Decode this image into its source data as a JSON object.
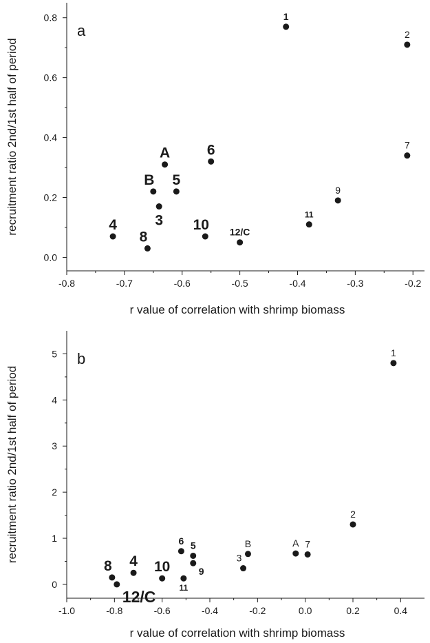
{
  "chart_data": [
    {
      "type": "scatter",
      "panel_label": "a",
      "xlabel": "r value of correlation with shrimp biomass",
      "ylabel": "recruitment ratio 2nd/1st half of period",
      "xlim": [
        -0.8,
        -0.18
      ],
      "ylim": [
        -0.045,
        0.85
      ],
      "xticks": [
        -0.8,
        -0.7,
        -0.6,
        -0.5,
        -0.4,
        -0.3,
        -0.2
      ],
      "xtick_labels": [
        "-0.8",
        "-0.7",
        "-0.6",
        "-0.5",
        "-0.4",
        "-0.3",
        "-0.2"
      ],
      "yticks": [
        0.0,
        0.2,
        0.4,
        0.6,
        0.8
      ],
      "ytick_labels": [
        "0.0",
        "0.2",
        "0.4",
        "0.6",
        "0.8"
      ],
      "grid": false,
      "points": [
        {
          "label": "1",
          "x": -0.42,
          "y": 0.77,
          "label_style": "bold-small",
          "label_pos": "above"
        },
        {
          "label": "2",
          "x": -0.21,
          "y": 0.71,
          "label_style": "normal-small",
          "label_pos": "above"
        },
        {
          "label": "7",
          "x": -0.21,
          "y": 0.34,
          "label_style": "normal-small",
          "label_pos": "above"
        },
        {
          "label": "9",
          "x": -0.33,
          "y": 0.19,
          "label_style": "normal-small",
          "label_pos": "above"
        },
        {
          "label": "11",
          "x": -0.38,
          "y": 0.11,
          "label_style": "bold-tiny",
          "label_pos": "above"
        },
        {
          "label": "12/C",
          "x": -0.5,
          "y": 0.05,
          "label_style": "bold-small",
          "label_pos": "above"
        },
        {
          "label": "10",
          "x": -0.56,
          "y": 0.07,
          "label_style": "bold-large",
          "label_pos": "above-left"
        },
        {
          "label": "6",
          "x": -0.55,
          "y": 0.32,
          "label_style": "bold-large",
          "label_pos": "above"
        },
        {
          "label": "5",
          "x": -0.61,
          "y": 0.22,
          "label_style": "bold-large",
          "label_pos": "above"
        },
        {
          "label": "A",
          "x": -0.63,
          "y": 0.31,
          "label_style": "bold-large",
          "label_pos": "above"
        },
        {
          "label": "B",
          "x": -0.65,
          "y": 0.22,
          "label_style": "bold-large",
          "label_pos": "above-left"
        },
        {
          "label": "3",
          "x": -0.64,
          "y": 0.17,
          "label_style": "bold-large",
          "label_pos": "below"
        },
        {
          "label": "8",
          "x": -0.66,
          "y": 0.03,
          "label_style": "bold-large",
          "label_pos": "above-left"
        },
        {
          "label": "4",
          "x": -0.72,
          "y": 0.07,
          "label_style": "bold-large",
          "label_pos": "above"
        }
      ]
    },
    {
      "type": "scatter",
      "panel_label": "b",
      "xlabel": "r value of correlation with shrimp biomass",
      "ylabel": "recruitment ratio 2nd/1st half of period",
      "xlim": [
        -1.0,
        0.5
      ],
      "ylim": [
        -0.3,
        5.5
      ],
      "xticks": [
        -1.0,
        -0.8,
        -0.6,
        -0.4,
        -0.2,
        0.0,
        0.2,
        0.4
      ],
      "xtick_labels": [
        "-1.0",
        "-0.8",
        "-0.6",
        "-0.4",
        "-0.2",
        "0.0",
        "0.2",
        "0.4"
      ],
      "yticks": [
        0,
        1,
        2,
        3,
        4,
        5
      ],
      "ytick_labels": [
        "0",
        "1",
        "2",
        "3",
        "4",
        "5"
      ],
      "grid": false,
      "points": [
        {
          "label": "1",
          "x": 0.37,
          "y": 4.8,
          "label_style": "normal-small",
          "label_pos": "above"
        },
        {
          "label": "2",
          "x": 0.2,
          "y": 1.3,
          "label_style": "normal-small",
          "label_pos": "above"
        },
        {
          "label": "7",
          "x": 0.01,
          "y": 0.65,
          "label_style": "normal-small",
          "label_pos": "above"
        },
        {
          "label": "A",
          "x": -0.04,
          "y": 0.67,
          "label_style": "normal-small",
          "label_pos": "above"
        },
        {
          "label": "B",
          "x": -0.24,
          "y": 0.66,
          "label_style": "normal-small",
          "label_pos": "above"
        },
        {
          "label": "3",
          "x": -0.26,
          "y": 0.35,
          "label_style": "normal-small",
          "label_pos": "above-left"
        },
        {
          "label": "6",
          "x": -0.52,
          "y": 0.72,
          "label_style": "bold-small",
          "label_pos": "above"
        },
        {
          "label": "5",
          "x": -0.47,
          "y": 0.62,
          "label_style": "bold-small",
          "label_pos": "above"
        },
        {
          "label": "9",
          "x": -0.47,
          "y": 0.46,
          "label_style": "bold-small",
          "label_pos": "below-right"
        },
        {
          "label": "11",
          "x": -0.51,
          "y": 0.13,
          "label_style": "bold-tiny",
          "label_pos": "below"
        },
        {
          "label": "10",
          "x": -0.6,
          "y": 0.13,
          "label_style": "bold-large",
          "label_pos": "above"
        },
        {
          "label": "4",
          "x": -0.72,
          "y": 0.25,
          "label_style": "bold-large",
          "label_pos": "above"
        },
        {
          "label": "8",
          "x": -0.81,
          "y": 0.15,
          "label_style": "bold-large",
          "label_pos": "above-left"
        },
        {
          "label": "12/C",
          "x": -0.79,
          "y": 0.0,
          "label_style": "bold-xlarge",
          "label_pos": "below-right"
        }
      ]
    }
  ]
}
